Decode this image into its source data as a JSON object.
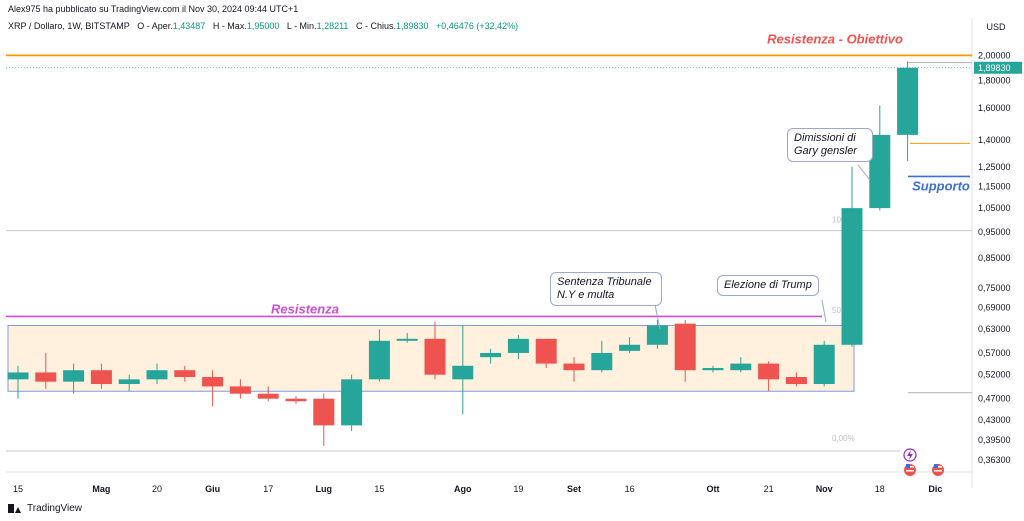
{
  "header": {
    "published": "Alex975 ha pubblicato su TradingView.com il Nov 30, 2024 09:44 UTC+1",
    "symbol": "XRP / Dollaro, 1W, BITSTAMP",
    "open_label": "O - Aper.",
    "open": "1,43487",
    "high_label": "H - Max.",
    "high": "1,95000",
    "low_label": "L - Min.",
    "low": "1,28211",
    "close_label": "C - Chius.",
    "close": "1,89830",
    "change": "+0,46476 (+32,42%)"
  },
  "footer": {
    "brand": "TradingView"
  },
  "colors": {
    "up": "#26a69a",
    "down": "#ef5350",
    "resistance_target": "#ff9800",
    "resistance": "#cc4fd6",
    "support": "#3d6ee0",
    "band": "#ffecd2"
  },
  "chart_data": {
    "type": "candlestick",
    "currency": "USD",
    "y_scale": "log",
    "ylim": [
      0.345,
      2.17
    ],
    "y_ticks": [
      "2,00000",
      "1,80000",
      "1,60000",
      "1,40000",
      "1,25000",
      "1,15000",
      "1,05000",
      "0,95000",
      "0,85000",
      "0,75000",
      "0,69000",
      "0,63000",
      "0,57000",
      "0,52000",
      "0,47000",
      "0,43000",
      "0,39500",
      "0,36300"
    ],
    "y_tick_values": [
      2.0,
      1.8,
      1.6,
      1.4,
      1.25,
      1.15,
      1.05,
      0.95,
      0.85,
      0.75,
      0.69,
      0.63,
      0.57,
      0.52,
      0.47,
      0.43,
      0.395,
      0.363
    ],
    "last_price": "1,89830",
    "x_ticks": [
      "15",
      "Mag",
      "20",
      "Giu",
      "17",
      "Lug",
      "15",
      "Ago",
      "19",
      "Set",
      "16",
      "Ott",
      "21",
      "Nov",
      "18",
      "Dic"
    ],
    "x_tick_weeks": [
      0,
      3,
      5,
      7,
      9,
      11,
      13,
      16,
      18,
      20,
      22,
      25,
      27,
      29,
      31,
      33
    ],
    "candles": [
      {
        "o": 0.51,
        "h": 0.54,
        "l": 0.47,
        "c": 0.525
      },
      {
        "o": 0.525,
        "h": 0.57,
        "l": 0.49,
        "c": 0.505
      },
      {
        "o": 0.505,
        "h": 0.545,
        "l": 0.48,
        "c": 0.53
      },
      {
        "o": 0.53,
        "h": 0.545,
        "l": 0.49,
        "c": 0.5
      },
      {
        "o": 0.5,
        "h": 0.52,
        "l": 0.485,
        "c": 0.51
      },
      {
        "o": 0.51,
        "h": 0.545,
        "l": 0.5,
        "c": 0.53
      },
      {
        "o": 0.53,
        "h": 0.54,
        "l": 0.505,
        "c": 0.515
      },
      {
        "o": 0.515,
        "h": 0.53,
        "l": 0.455,
        "c": 0.495
      },
      {
        "o": 0.495,
        "h": 0.51,
        "l": 0.47,
        "c": 0.48
      },
      {
        "o": 0.48,
        "h": 0.495,
        "l": 0.465,
        "c": 0.47
      },
      {
        "o": 0.47,
        "h": 0.475,
        "l": 0.46,
        "c": 0.465
      },
      {
        "o": 0.47,
        "h": 0.48,
        "l": 0.385,
        "c": 0.42
      },
      {
        "o": 0.42,
        "h": 0.52,
        "l": 0.41,
        "c": 0.51
      },
      {
        "o": 0.51,
        "h": 0.63,
        "l": 0.505,
        "c": 0.6
      },
      {
        "o": 0.6,
        "h": 0.62,
        "l": 0.595,
        "c": 0.605
      },
      {
        "o": 0.605,
        "h": 0.65,
        "l": 0.51,
        "c": 0.52
      },
      {
        "o": 0.51,
        "h": 0.64,
        "l": 0.44,
        "c": 0.54
      },
      {
        "o": 0.56,
        "h": 0.58,
        "l": 0.545,
        "c": 0.57
      },
      {
        "o": 0.57,
        "h": 0.615,
        "l": 0.555,
        "c": 0.605
      },
      {
        "o": 0.605,
        "h": 0.605,
        "l": 0.535,
        "c": 0.545
      },
      {
        "o": 0.545,
        "h": 0.56,
        "l": 0.505,
        "c": 0.53
      },
      {
        "o": 0.53,
        "h": 0.6,
        "l": 0.525,
        "c": 0.57
      },
      {
        "o": 0.575,
        "h": 0.61,
        "l": 0.57,
        "c": 0.59
      },
      {
        "o": 0.59,
        "h": 0.655,
        "l": 0.58,
        "c": 0.64
      },
      {
        "o": 0.645,
        "h": 0.655,
        "l": 0.505,
        "c": 0.53
      },
      {
        "o": 0.53,
        "h": 0.54,
        "l": 0.525,
        "c": 0.535
      },
      {
        "o": 0.53,
        "h": 0.56,
        "l": 0.525,
        "c": 0.545
      },
      {
        "o": 0.545,
        "h": 0.55,
        "l": 0.485,
        "c": 0.51
      },
      {
        "o": 0.515,
        "h": 0.525,
        "l": 0.495,
        "c": 0.5
      },
      {
        "o": 0.5,
        "h": 0.6,
        "l": 0.495,
        "c": 0.59
      },
      {
        "o": 0.59,
        "h": 1.25,
        "l": 0.585,
        "c": 1.05
      },
      {
        "o": 1.05,
        "h": 1.62,
        "l": 1.04,
        "c": 1.43
      },
      {
        "o": 1.43,
        "h": 1.95,
        "l": 1.28,
        "c": 1.898
      }
    ],
    "levels": [
      {
        "name": "Resistenza - Obiettivo",
        "price": 2.0
      },
      {
        "name": "Resistenza",
        "price": 0.665
      },
      {
        "name": "Supporto",
        "price": 1.2
      }
    ],
    "band": {
      "low": 0.485,
      "high": 0.64
    },
    "fib_labels": [
      "100",
      "50",
      "0,00%"
    ],
    "annotations": [
      {
        "text": "Sentenza Tribunale N.Y e multa",
        "week": 23
      },
      {
        "text": "Elezione di Trump",
        "week": 29
      },
      {
        "text": "Dimissioni di Gary gensler",
        "week": 31
      }
    ]
  }
}
